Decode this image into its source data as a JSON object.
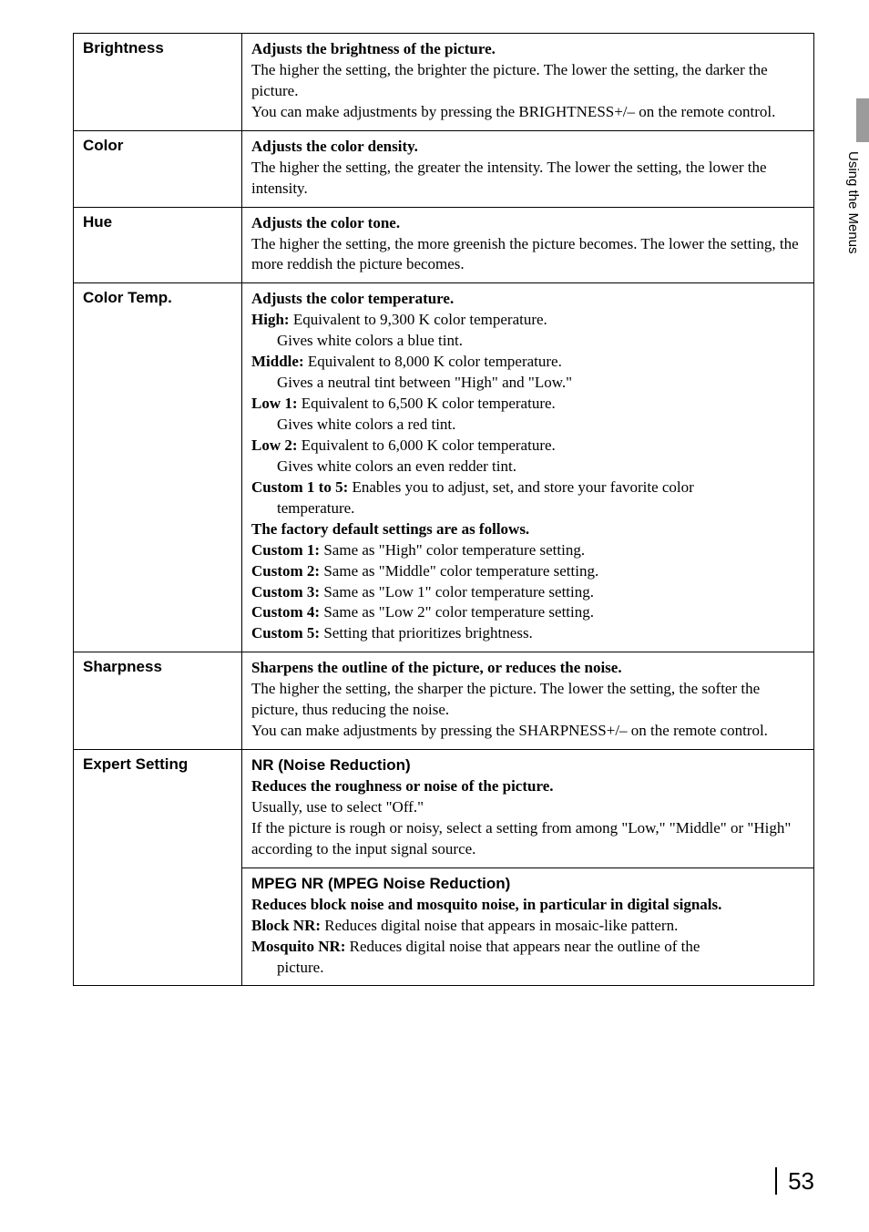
{
  "sideTab": {
    "label": "Using the Menus"
  },
  "rows": [
    {
      "label": "Brightness",
      "segments": [
        {
          "bold": true,
          "text": "Adjusts the brightness of the picture."
        },
        {
          "br": true
        },
        {
          "text": "The higher the setting, the brighter the picture. The lower the setting, the darker the picture."
        },
        {
          "br": true
        },
        {
          "text": "You can make adjustments by pressing the BRIGHTNESS+/– on the remote control."
        }
      ]
    },
    {
      "label": "Color",
      "segments": [
        {
          "bold": true,
          "text": "Adjusts the color density."
        },
        {
          "br": true
        },
        {
          "text": "The higher the setting, the greater the intensity. The lower the setting, the lower the intensity."
        }
      ]
    },
    {
      "label": "Hue",
      "segments": [
        {
          "bold": true,
          "text": "Adjusts the color tone."
        },
        {
          "br": true
        },
        {
          "text": "The higher the setting, the more greenish the picture becomes. The lower the setting, the more reddish the picture becomes."
        }
      ]
    },
    {
      "label": "Color Temp.",
      "segments": [
        {
          "bold": true,
          "text": "Adjusts the color temperature."
        },
        {
          "br": true
        },
        {
          "bold": true,
          "text": "High:"
        },
        {
          "text": " Equivalent to 9,300 K color temperature."
        },
        {
          "br": true
        },
        {
          "indent": true,
          "text": "Gives white colors a blue tint."
        },
        {
          "bold": true,
          "text": "Middle:"
        },
        {
          "text": " Equivalent to 8,000 K color temperature."
        },
        {
          "br": true
        },
        {
          "indent": true,
          "text": "Gives a neutral tint between \"High\" and \"Low.\""
        },
        {
          "bold": true,
          "text": "Low 1:"
        },
        {
          "text": " Equivalent to 6,500 K color temperature."
        },
        {
          "br": true
        },
        {
          "indent": true,
          "text": "Gives white colors a red tint."
        },
        {
          "bold": true,
          "text": "Low 2:"
        },
        {
          "text": " Equivalent to 6,000 K color temperature."
        },
        {
          "br": true
        },
        {
          "indent": true,
          "text": "Gives white colors an even redder tint."
        },
        {
          "bold": true,
          "text": "Custom 1 to 5:"
        },
        {
          "text": " Enables you to adjust, set, and store your favorite color"
        },
        {
          "br": true
        },
        {
          "indent": true,
          "text": "temperature."
        },
        {
          "bold": true,
          "text": "The factory default settings are as follows."
        },
        {
          "br": true
        },
        {
          "bold": true,
          "text": "Custom 1:"
        },
        {
          "text": " Same as \"High\" color temperature setting."
        },
        {
          "br": true
        },
        {
          "bold": true,
          "text": "Custom 2:"
        },
        {
          "text": " Same as \"Middle\" color temperature setting."
        },
        {
          "br": true
        },
        {
          "bold": true,
          "text": "Custom 3:"
        },
        {
          "text": " Same as \"Low 1\" color temperature setting."
        },
        {
          "br": true
        },
        {
          "bold": true,
          "text": "Custom 4:"
        },
        {
          "text": " Same as \"Low 2\" color temperature setting."
        },
        {
          "br": true
        },
        {
          "bold": true,
          "text": "Custom 5:"
        },
        {
          "text": " Setting that prioritizes brightness."
        }
      ]
    },
    {
      "label": "Sharpness",
      "segments": [
        {
          "bold": true,
          "text": "Sharpens the outline of the picture, or reduces the noise."
        },
        {
          "br": true
        },
        {
          "text": "The higher the setting, the sharper the picture. The lower the setting, the softer the picture, thus reducing the noise."
        },
        {
          "br": true
        },
        {
          "text": "You can make adjustments by pressing the SHARPNESS+/– on the remote control."
        }
      ]
    }
  ],
  "expert": {
    "label": "Expert Setting",
    "top": {
      "heading": "NR (Noise Reduction)",
      "segments": [
        {
          "bold": true,
          "text": "Reduces the roughness or noise of the picture."
        },
        {
          "br": true
        },
        {
          "text": "Usually, use to select \"Off.\""
        },
        {
          "br": true
        },
        {
          "text": "If the picture is rough or noisy, select a setting from among \"Low,\" \"Middle\" or \"High\" according to the input signal source."
        }
      ]
    },
    "bottom": {
      "heading": "MPEG NR (MPEG Noise Reduction)",
      "segments": [
        {
          "bold": true,
          "text": "Reduces block noise and mosquito noise, in particular in digital signals."
        },
        {
          "br": true
        },
        {
          "bold": true,
          "text": "Block NR:"
        },
        {
          "text": " Reduces digital noise that appears in mosaic-like pattern."
        },
        {
          "br": true
        },
        {
          "bold": true,
          "text": "Mosquito NR:"
        },
        {
          "text": " Reduces digital noise that appears near the outline of the"
        },
        {
          "br": true
        },
        {
          "indent": true,
          "text": "picture."
        }
      ]
    }
  },
  "pageNumber": "53"
}
